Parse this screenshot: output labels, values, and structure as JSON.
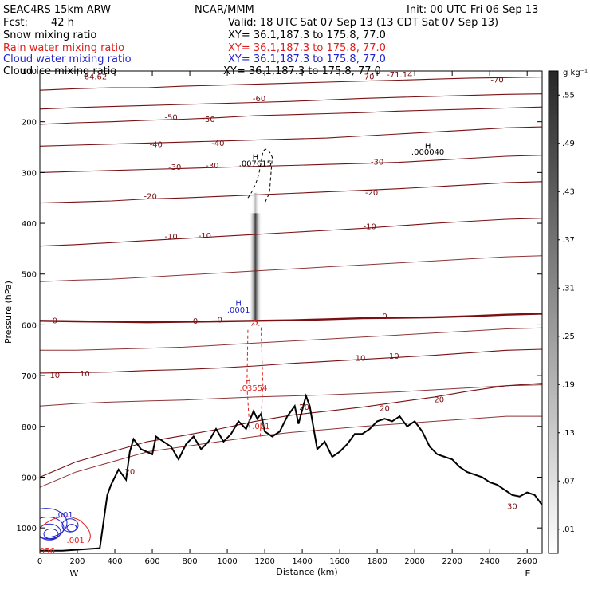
{
  "header": {
    "model": "SEAC4RS 15km ARW",
    "org": "NCAR/MMM",
    "init": "Init: 00 UTC Fri 06 Sep 13",
    "fcst_label": "Fcst:",
    "fcst_value": "42 h",
    "valid": "Valid: 18 UTC Sat 07 Sep 13 (13 CDT Sat 07 Sep 13)"
  },
  "fields": [
    {
      "name": "Snow mixing ratio",
      "xy": "XY=  36.1,187.3 to 175.8, 77.0",
      "color": "#000000"
    },
    {
      "name": "Rain water mixing ratio",
      "xy": "XY=  36.1,187.3 to 175.8, 77.0",
      "color": "#e0201c"
    },
    {
      "name": "Cloud water mixing ratio",
      "xy": "XY=  36.1,187.3 to 175.8, 77.0",
      "color": "#2222cc"
    },
    {
      "name": "Cloud ice mixing ratio",
      "xy": "XY=  36.1,187.3 to 175.8, 77.0",
      "color": "#000000"
    }
  ],
  "colors": {
    "temperature_contour": "#7a1014",
    "freezing_level": "#7a1014",
    "terrain": "#000000",
    "rain": "#e0201c",
    "cloud_water": "#2222cc"
  },
  "chart_data": {
    "type": "cross-section",
    "xlabel": "Distance (km)",
    "ylabel": "Pressure (hPa)",
    "xlim": [
      0,
      2680
    ],
    "ylim": [
      1050,
      100
    ],
    "x_ticks": [
      0,
      200,
      400,
      600,
      800,
      1000,
      1200,
      1400,
      1600,
      1800,
      2000,
      2200,
      2400,
      2600
    ],
    "y_ticks": [
      100,
      200,
      300,
      400,
      500,
      600,
      700,
      800,
      900,
      1000
    ],
    "end_labels": {
      "left": "W",
      "right": "E"
    },
    "colorbar": {
      "unit": "g kg⁻¹",
      "levels": [
        ".01",
        ".07",
        ".13",
        ".19",
        ".25",
        ".31",
        ".37",
        ".43",
        ".49",
        ".55"
      ]
    },
    "temperature_isotherms": [
      {
        "temp": -70,
        "p": [
          138,
          135,
          133,
          133,
          130,
          128,
          126,
          124,
          122,
          120,
          118,
          116,
          114,
          113,
          112
        ]
      },
      {
        "temp": -60,
        "p": [
          175,
          172,
          170,
          168,
          166,
          164,
          162,
          160,
          157,
          154,
          152,
          150,
          148,
          146,
          145
        ]
      },
      {
        "temp": -50,
        "p": [
          205,
          202,
          200,
          197,
          195,
          192,
          188,
          186,
          184,
          182,
          179,
          177,
          175,
          173,
          171
        ]
      },
      {
        "temp": -40,
        "p": [
          248,
          246,
          244,
          242,
          240,
          238,
          236,
          234,
          232,
          228,
          224,
          220,
          216,
          212,
          210
        ]
      },
      {
        "temp": -30,
        "p": [
          300,
          298,
          296,
          294,
          292,
          290,
          288,
          286,
          284,
          282,
          280,
          276,
          272,
          268,
          266
        ]
      },
      {
        "temp": -20,
        "p": [
          360,
          358,
          356,
          352,
          350,
          347,
          344,
          341,
          338,
          335,
          332,
          328,
          324,
          320,
          318
        ]
      },
      {
        "temp": -10,
        "p": [
          445,
          442,
          438,
          434,
          430,
          426,
          422,
          418,
          414,
          410,
          405,
          400,
          396,
          392,
          390
        ]
      },
      {
        "temp": 0,
        "p": [
          592,
          593,
          594,
          595,
          594,
          593,
          592,
          591,
          589,
          587,
          586,
          585,
          583,
          580,
          578
        ]
      },
      {
        "temp": 10,
        "p": [
          695,
          694,
          693,
          690,
          688,
          685,
          681,
          676,
          672,
          668,
          664,
          660,
          655,
          650,
          648
        ]
      },
      {
        "temp": 20,
        "p": [
          900,
          870,
          850,
          830,
          818,
          805,
          790,
          778,
          770,
          762,
          752,
          742,
          730,
          720,
          715
        ]
      }
    ],
    "terrain": {
      "x": [
        0,
        120,
        320,
        360,
        380,
        420,
        460,
        480,
        500,
        540,
        600,
        620,
        660,
        700,
        740,
        780,
        820,
        860,
        900,
        940,
        980,
        1020,
        1060,
        1100,
        1140,
        1160,
        1180,
        1200,
        1240,
        1280,
        1320,
        1360,
        1380,
        1420,
        1440,
        1480,
        1520,
        1560,
        1600,
        1640,
        1680,
        1720,
        1760,
        1800,
        1840,
        1880,
        1920,
        1960,
        2000,
        2040,
        2080,
        2120,
        2160,
        2200,
        2240,
        2280,
        2320,
        2360,
        2400,
        2440,
        2480,
        2520,
        2560,
        2600,
        2640,
        2680
      ],
      "p": [
        1045,
        1045,
        1040,
        935,
        915,
        885,
        905,
        850,
        825,
        845,
        855,
        820,
        830,
        840,
        865,
        835,
        820,
        845,
        830,
        805,
        830,
        815,
        790,
        805,
        770,
        785,
        775,
        810,
        820,
        810,
        780,
        760,
        795,
        740,
        760,
        845,
        830,
        860,
        850,
        835,
        815,
        815,
        805,
        790,
        785,
        790,
        780,
        800,
        790,
        810,
        840,
        855,
        860,
        865,
        880,
        890,
        895,
        900,
        910,
        915,
        925,
        935,
        938,
        930,
        935,
        955
      ]
    },
    "contour_labels": [
      {
        "text": "-64.62",
        "x": 290,
        "p": 112,
        "color": "temperature"
      },
      {
        "text": "-70",
        "x": 1750,
        "p": 112,
        "color": "temperature"
      },
      {
        "text": "-71.14",
        "x": 1920,
        "p": 108,
        "color": "temperature"
      },
      {
        "text": "-70",
        "x": 2440,
        "p": 118,
        "color": "temperature"
      },
      {
        "text": "-60",
        "x": 1170,
        "p": 155,
        "color": "temperature"
      },
      {
        "text": "-50",
        "x": 700,
        "p": 192,
        "color": "temperature"
      },
      {
        "text": "-50",
        "x": 900,
        "p": 196,
        "color": "temperature"
      },
      {
        "text": "-40",
        "x": 620,
        "p": 245,
        "color": "temperature"
      },
      {
        "text": "-40",
        "x": 950,
        "p": 243,
        "color": "temperature"
      },
      {
        "text": "-30",
        "x": 720,
        "p": 290,
        "color": "temperature"
      },
      {
        "text": "-30",
        "x": 920,
        "p": 287,
        "color": "temperature"
      },
      {
        "text": "-30",
        "x": 1800,
        "p": 280,
        "color": "temperature"
      },
      {
        "text": "-20",
        "x": 590,
        "p": 347,
        "color": "temperature"
      },
      {
        "text": "-20",
        "x": 1770,
        "p": 340,
        "color": "temperature"
      },
      {
        "text": "-10",
        "x": 700,
        "p": 427,
        "color": "temperature"
      },
      {
        "text": "-10",
        "x": 880,
        "p": 425,
        "color": "temperature"
      },
      {
        "text": "-10",
        "x": 1760,
        "p": 407,
        "color": "temperature"
      },
      {
        "text": "0",
        "x": 80,
        "p": 592,
        "color": "temperature"
      },
      {
        "text": "0",
        "x": 830,
        "p": 593,
        "color": "temperature"
      },
      {
        "text": "0",
        "x": 960,
        "p": 591,
        "color": "temperature"
      },
      {
        "text": "0",
        "x": 1840,
        "p": 584,
        "color": "temperature"
      },
      {
        "text": "10",
        "x": 1710,
        "p": 666,
        "color": "temperature"
      },
      {
        "text": "10",
        "x": 1890,
        "p": 662,
        "color": "temperature"
      },
      {
        "text": "10",
        "x": 80,
        "p": 700,
        "color": "temperature"
      },
      {
        "text": "10",
        "x": 240,
        "p": 697,
        "color": "temperature"
      },
      {
        "text": "20",
        "x": 1410,
        "p": 763,
        "color": "temperature"
      },
      {
        "text": "20",
        "x": 1840,
        "p": 765,
        "color": "temperature"
      },
      {
        "text": "20",
        "x": 2130,
        "p": 748,
        "color": "temperature"
      },
      {
        "text": "20",
        "x": 480,
        "p": 890,
        "color": "temperature"
      },
      {
        "text": "30",
        "x": 2520,
        "p": 958,
        "color": "temperature"
      },
      {
        "text": "H",
        "x": 2070,
        "p": 248,
        "color": "black"
      },
      {
        "text": ".000040",
        "x": 2070,
        "p": 260,
        "color": "black"
      },
      {
        "text": "H",
        "x": 1150,
        "p": 270,
        "color": "black"
      },
      {
        "text": ".007615",
        "x": 1150,
        "p": 283,
        "color": "black"
      },
      {
        "text": "H",
        "x": 1060,
        "p": 558,
        "color": "cloud"
      },
      {
        "text": ".0001",
        "x": 1060,
        "p": 571,
        "color": "cloud"
      },
      {
        "text": "H",
        "x": 1110,
        "p": 712,
        "color": "rain"
      },
      {
        "text": ".03554",
        "x": 1140,
        "p": 725,
        "color": "rain"
      },
      {
        "text": ".001",
        "x": 1180,
        "p": 800,
        "color": "rain"
      },
      {
        "text": "0",
        "x": 1150,
        "p": 596,
        "color": "rain"
      },
      {
        "text": ".001",
        "x": 190,
        "p": 1025,
        "color": "rain"
      },
      {
        "text": ".001",
        "x": 130,
        "p": 975,
        "color": "cloud"
      },
      {
        "text": "056",
        "x": 40,
        "p": 1045,
        "color": "rain"
      }
    ]
  }
}
